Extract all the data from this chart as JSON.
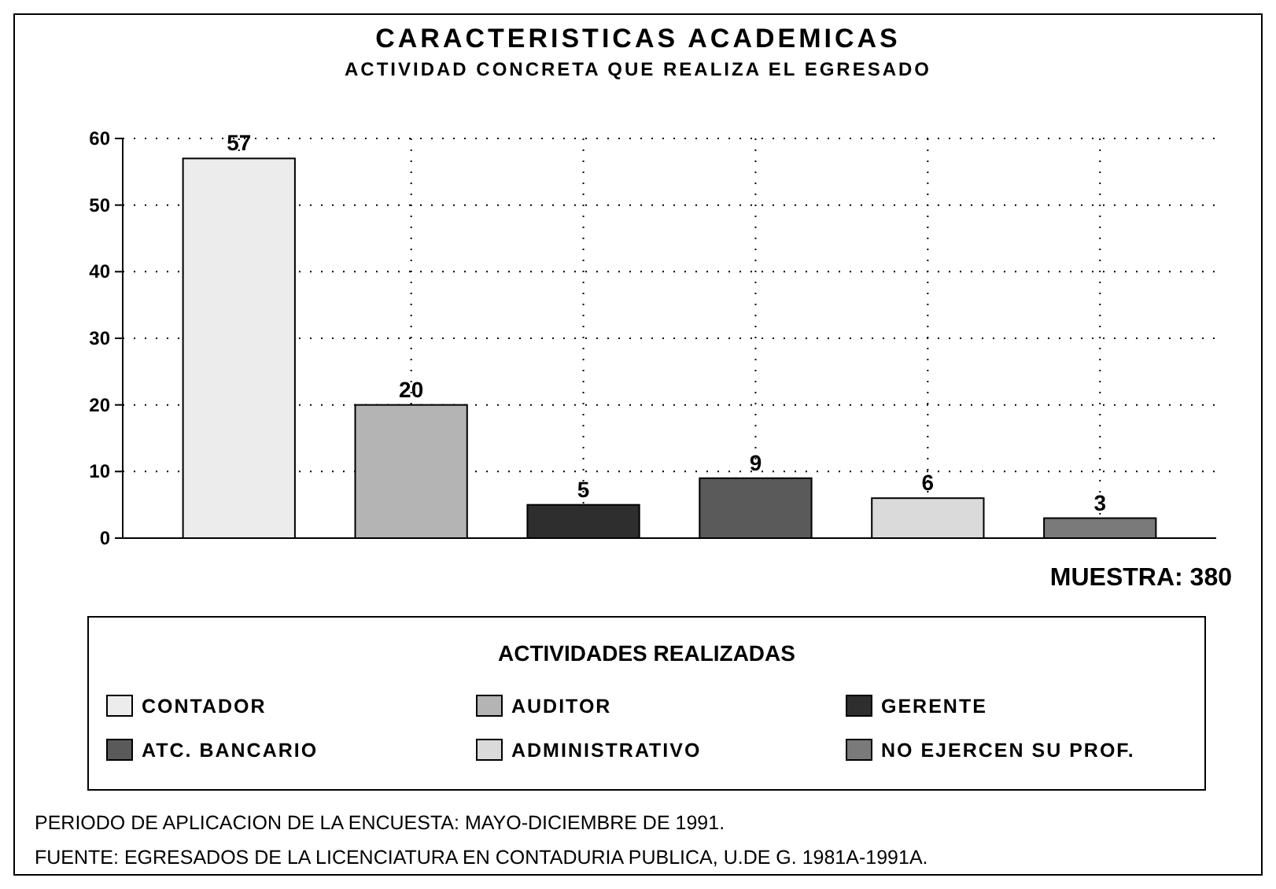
{
  "chart_data": {
    "type": "bar",
    "title": "CARACTERISTICAS ACADEMICAS",
    "subtitle": "ACTIVIDAD CONCRETA QUE REALIZA EL EGRESADO",
    "categories": [
      null,
      null,
      null,
      null,
      null,
      null
    ],
    "series": [
      {
        "name": "CONTADOR",
        "color": "#ececec",
        "values": [
          57,
          null,
          null,
          null,
          null,
          null
        ]
      },
      {
        "name": "AUDITOR",
        "color": "#b4b4b4",
        "values": [
          null,
          20,
          null,
          null,
          null,
          null
        ]
      },
      {
        "name": "GERENTE",
        "color": "#2e2e2e",
        "values": [
          null,
          null,
          5,
          null,
          null,
          null
        ]
      },
      {
        "name": "ATC. BANCARIO",
        "color": "#5a5a5a",
        "values": [
          null,
          null,
          null,
          9,
          null,
          null
        ]
      },
      {
        "name": "ADMINISTRATIVO",
        "color": "#dadada",
        "values": [
          null,
          null,
          null,
          null,
          6,
          null
        ]
      },
      {
        "name": "NO EJERCEN SU PROF.",
        "color": "#7a7a7a",
        "values": [
          null,
          null,
          null,
          null,
          null,
          3
        ]
      }
    ],
    "ylim": [
      0,
      60
    ],
    "yticks": [
      0,
      10,
      20,
      30,
      40,
      50,
      60
    ],
    "grid": true,
    "data_labels": true,
    "legend": "bottom",
    "legend_title": "ACTIVIDADES REALIZADAS",
    "annotations": [
      "MUESTRA: 380",
      "PERIODO DE APLICACION DE LA ENCUESTA: MAYO-DICIEMBRE DE 1991.",
      "FUENTE: EGRESADOS DE LA LICENCIATURA EN CONTADURIA PUBLICA, U.DE G. 1981A-1991A."
    ]
  }
}
